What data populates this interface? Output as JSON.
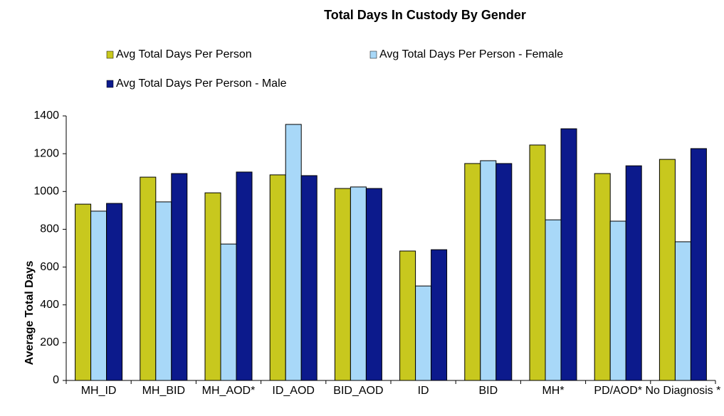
{
  "chart_data": {
    "type": "bar",
    "title": "Total Days In Custody By Gender",
    "y_label": "Average Total Days",
    "categories": [
      "MH_ID",
      "MH_BID",
      "MH_AOD*",
      "ID_AOD",
      "BID_AOD",
      "ID",
      "BID",
      "MH*",
      "PD/AOD*",
      "No Diagnosis *"
    ],
    "series": [
      {
        "name": "Avg Total Days Per Person",
        "color": "#c8c81e",
        "values": [
          933,
          1076,
          993,
          1088,
          1016,
          685,
          1148,
          1246,
          1095,
          1170
        ]
      },
      {
        "name": "Avg Total Days Per Person - Female",
        "color": "#a8d8f8",
        "values": [
          896,
          945,
          722,
          1355,
          1024,
          500,
          1163,
          850,
          843,
          734
        ]
      },
      {
        "name": "Avg Total Days Per Person - Male",
        "color": "#0c1a8c",
        "values": [
          937,
          1095,
          1103,
          1084,
          1016,
          692,
          1148,
          1332,
          1136,
          1227
        ]
      }
    ],
    "ylim": [
      0,
      1400
    ],
    "yticks": [
      0,
      200,
      400,
      600,
      800,
      1000,
      1200,
      1400
    ],
    "grid": false
  }
}
